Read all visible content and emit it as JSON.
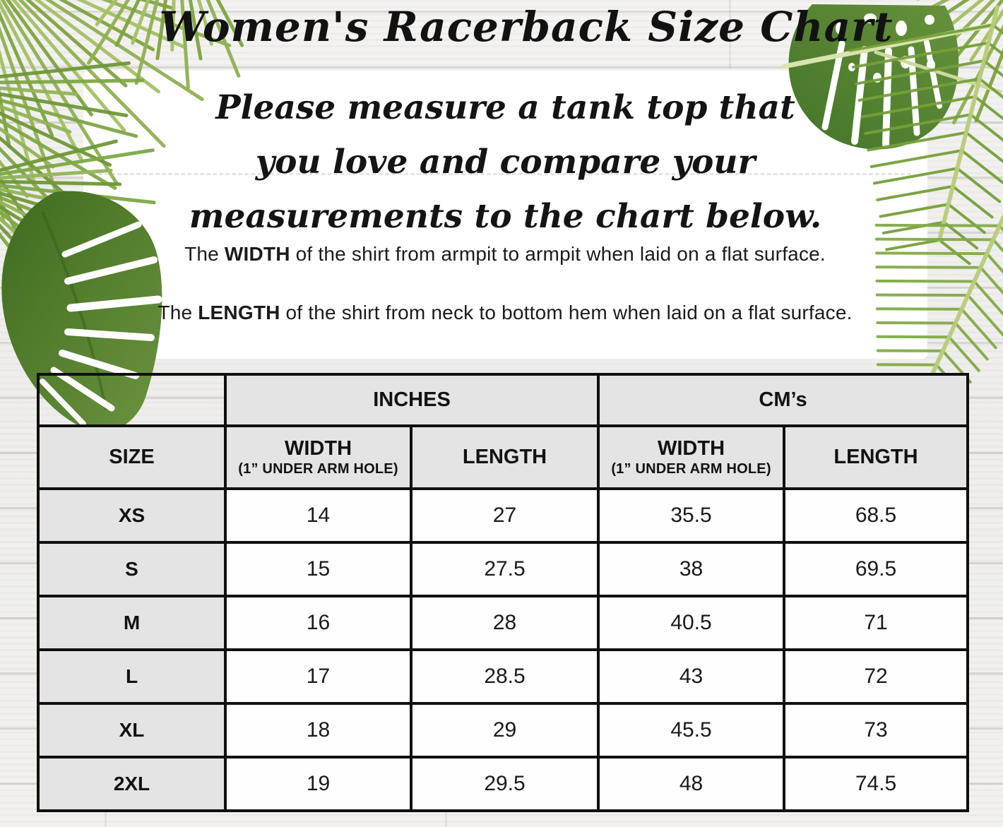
{
  "title": "Women's Racerback Size Chart",
  "intro": "Please measure a tank top that\nyou love and compare your\nmeasurements to the chart below.",
  "instructions": [
    {
      "prefix": "The ",
      "bold": "WIDTH",
      "suffix": " of the shirt from armpit to armpit when laid on a flat surface."
    },
    {
      "prefix": "The ",
      "bold": "LENGTH",
      "suffix": " of the shirt from neck to bottom hem when laid on a flat surface."
    }
  ],
  "table": {
    "units": [
      "INCHES",
      "CM’s"
    ],
    "columns": {
      "size": "SIZE",
      "width": "WIDTH",
      "width_sub": "(1” UNDER ARM HOLE)",
      "length": "LENGTH"
    },
    "rows": [
      {
        "size": "XS",
        "in_width": "14",
        "in_length": "27",
        "cm_width": "35.5",
        "cm_length": "68.5"
      },
      {
        "size": "S",
        "in_width": "15",
        "in_length": "27.5",
        "cm_width": "38",
        "cm_length": "69.5"
      },
      {
        "size": "M",
        "in_width": "16",
        "in_length": "28",
        "cm_width": "40.5",
        "cm_length": "71"
      },
      {
        "size": "L",
        "in_width": "17",
        "in_length": "28.5",
        "cm_width": "43",
        "cm_length": "72"
      },
      {
        "size": "XL",
        "in_width": "18",
        "in_length": "29",
        "cm_width": "45.5",
        "cm_length": "73"
      },
      {
        "size": "2XL",
        "in_width": "19",
        "in_length": "29.5",
        "cm_width": "48",
        "cm_length": "74.5"
      }
    ]
  },
  "colors": {
    "leaf_green": "#7fa441",
    "monstera_green": "#4a7a28",
    "table_header_bg": "#e4e4e4",
    "table_border": "#101010",
    "panel_bg": "#ffffff",
    "text": "#161616"
  }
}
